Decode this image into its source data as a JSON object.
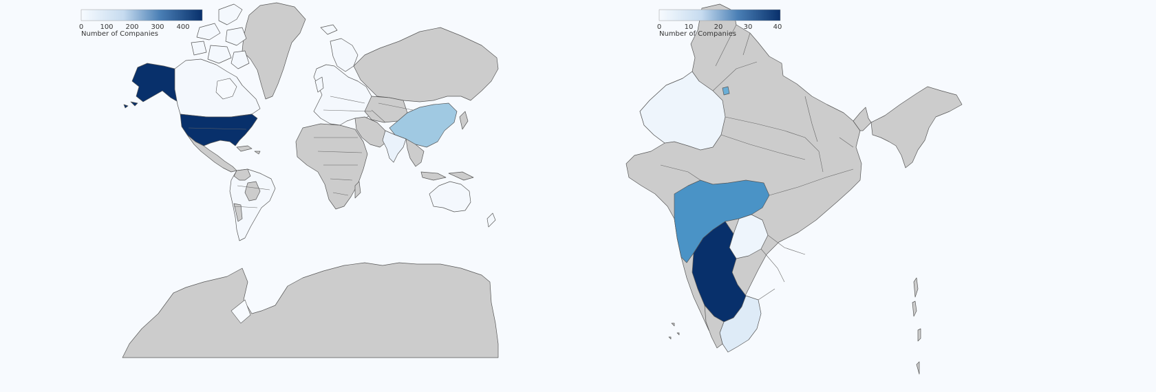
{
  "colors": {
    "background": "#f7fafe",
    "no_data": "#cccccc",
    "scale_low": "#f7fbff",
    "scale_high": "#08306b"
  },
  "world_map": {
    "legend": {
      "title": "Number of Companies",
      "ticks": [
        "0",
        "100",
        "200",
        "300",
        "400"
      ],
      "range": [
        0,
        470
      ]
    },
    "highlighted": [
      {
        "name": "United States",
        "level": 1.0
      },
      {
        "name": "China",
        "level": 0.32
      },
      {
        "name": "India",
        "level": 0.05
      },
      {
        "name": "Canada",
        "level": 0.04
      },
      {
        "name": "Australia",
        "level": 0.03
      }
    ]
  },
  "india_map": {
    "legend": {
      "title": "Number of Companies",
      "ticks": [
        "0",
        "10",
        "20",
        "30",
        "40"
      ],
      "range": [
        0,
        41
      ]
    },
    "highlighted": [
      {
        "name": "Karnataka",
        "level": 1.0
      },
      {
        "name": "Maharashtra",
        "level": 0.6
      },
      {
        "name": "Delhi",
        "level": 0.55
      },
      {
        "name": "Tamil Nadu",
        "level": 0.1
      },
      {
        "name": "Rajasthan",
        "level": 0.04
      },
      {
        "name": "Telangana",
        "level": 0.04
      }
    ]
  }
}
